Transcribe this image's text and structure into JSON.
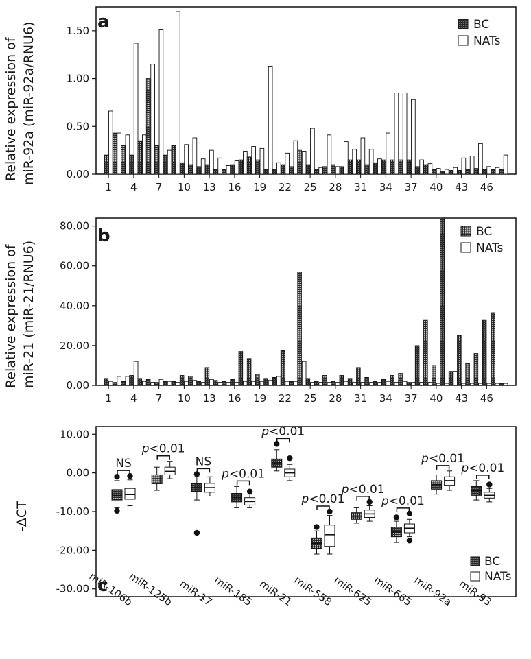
{
  "colors": {
    "bc_fill": "#3a3a3a",
    "nats_fill": "#ffffff",
    "stroke": "#111111",
    "hatch_light": "#bdbdbd"
  },
  "chart_data": [
    {
      "type": "bar",
      "panel_letter": "a",
      "ylabel_line1": "Relative expression of",
      "ylabel_line2": "miR-92a (miR-92a/RNU6)",
      "ylim": [
        0,
        1.75
      ],
      "yticks": [
        0,
        0.5,
        1.0,
        1.5
      ],
      "ytick_labels": [
        "0.00",
        "0.50",
        "1.00",
        "1.50"
      ],
      "categories": [
        "1",
        "2",
        "3",
        "4",
        "5",
        "6",
        "7",
        "8",
        "9",
        "10",
        "11",
        "12",
        "13",
        "14",
        "15",
        "16",
        "17",
        "18",
        "19",
        "20",
        "21",
        "22",
        "23",
        "24",
        "25",
        "26",
        "27",
        "28",
        "29",
        "30",
        "31",
        "32",
        "33",
        "34",
        "35",
        "36",
        "37",
        "38",
        "39",
        "40",
        "41",
        "42",
        "43",
        "44",
        "45",
        "46",
        "47",
        "48"
      ],
      "xtick_labels": [
        "1",
        "4",
        "7",
        "10",
        "13",
        "16",
        "19",
        "22",
        "25",
        "28",
        "31",
        "34",
        "37",
        "40",
        "43",
        "46"
      ],
      "legend": [
        "BC",
        "NATs"
      ],
      "series": [
        {
          "name": "BC",
          "values": [
            0.2,
            0.43,
            0.3,
            0.2,
            0.35,
            1.0,
            0.3,
            0.2,
            0.3,
            0.12,
            0.1,
            0.08,
            0.1,
            0.05,
            0.05,
            0.1,
            0.15,
            0.18,
            0.15,
            0.05,
            0.05,
            0.1,
            0.08,
            0.25,
            0.1,
            0.05,
            0.08,
            0.1,
            0.08,
            0.15,
            0.15,
            0.1,
            0.12,
            0.15,
            0.15,
            0.15,
            0.15,
            0.08,
            0.1,
            0.05,
            0.03,
            0.04,
            0.04,
            0.05,
            0.06,
            0.05,
            0.05,
            0.05
          ]
        },
        {
          "name": "NATs",
          "values": [
            0.66,
            0.43,
            0.41,
            1.37,
            0.41,
            1.15,
            1.51,
            0.25,
            1.7,
            0.31,
            0.38,
            0.16,
            0.25,
            0.17,
            0.09,
            0.14,
            0.24,
            0.29,
            0.27,
            1.13,
            0.12,
            0.22,
            0.35,
            0.24,
            0.48,
            0.07,
            0.41,
            0.08,
            0.34,
            0.26,
            0.38,
            0.26,
            0.16,
            0.43,
            0.85,
            0.85,
            0.78,
            0.15,
            0.11,
            0.06,
            0.05,
            0.07,
            0.17,
            0.19,
            0.32,
            0.08,
            0.07,
            0.2
          ]
        }
      ]
    },
    {
      "type": "bar",
      "panel_letter": "b",
      "ylabel_line1": "Relative expression of",
      "ylabel_line2": "miR-21 (miR-21/RNU6)",
      "ylim": [
        0,
        84
      ],
      "yticks": [
        0,
        20,
        40,
        60,
        80
      ],
      "ytick_labels": [
        "0.00",
        "20.00",
        "40.00",
        "60.00",
        "80.00"
      ],
      "categories": [
        "1",
        "2",
        "3",
        "4",
        "5",
        "6",
        "7",
        "8",
        "9",
        "10",
        "11",
        "12",
        "13",
        "14",
        "15",
        "16",
        "17",
        "18",
        "19",
        "20",
        "21",
        "22",
        "23",
        "24",
        "25",
        "26",
        "27",
        "28",
        "29",
        "30",
        "31",
        "32",
        "33",
        "34",
        "35",
        "36",
        "37",
        "38",
        "39",
        "40",
        "41",
        "42",
        "43",
        "44",
        "45",
        "46",
        "47",
        "48"
      ],
      "xtick_labels": [
        "1",
        "4",
        "7",
        "10",
        "13",
        "16",
        "19",
        "22",
        "25",
        "28",
        "31",
        "34",
        "37",
        "40",
        "43",
        "46"
      ],
      "legend": [
        "BC",
        "NATs"
      ],
      "series": [
        {
          "name": "BC",
          "values": [
            3.5,
            1.5,
            2.0,
            5.0,
            3.5,
            3.0,
            1.5,
            2.0,
            2.0,
            5.0,
            4.5,
            2.0,
            9.0,
            2.5,
            2.0,
            3.0,
            17.0,
            13.5,
            5.5,
            3.5,
            4.0,
            17.5,
            2.0,
            57.0,
            3.5,
            2.0,
            5.0,
            2.0,
            5.0,
            3.5,
            9.0,
            4.0,
            2.0,
            3.0,
            5.0,
            6.0,
            1.5,
            20.0,
            33.0,
            10.0,
            84.0,
            7.0,
            25.0,
            11.0,
            16.0,
            33.0,
            36.5,
            1.0
          ]
        },
        {
          "name": "NATs",
          "values": [
            2.0,
            4.5,
            4.5,
            12.0,
            2.0,
            1.5,
            3.0,
            2.0,
            1.5,
            2.0,
            2.5,
            1.5,
            3.0,
            1.5,
            1.5,
            1.5,
            2.0,
            2.0,
            2.0,
            2.5,
            4.5,
            2.0,
            2.0,
            12.0,
            1.5,
            1.5,
            1.5,
            1.5,
            2.0,
            1.5,
            1.5,
            1.5,
            1.5,
            2.0,
            1.5,
            2.0,
            1.5,
            1.5,
            1.5,
            1.0,
            1.0,
            7.0,
            1.0,
            1.0,
            1.0,
            1.0,
            1.0,
            1.0
          ]
        }
      ]
    },
    {
      "type": "box",
      "panel_letter": "c",
      "ylabel": "-ΔCT",
      "ylim": [
        -32,
        12
      ],
      "yticks": [
        10,
        0,
        -10,
        -20,
        -30
      ],
      "ytick_labels": [
        "10.00",
        "0.00",
        "-10.00",
        "-20.00",
        "-30.00"
      ],
      "categories": [
        "miR-106b",
        "miR-125b",
        "miR-17",
        "miR-185",
        "miR-21",
        "miR-558",
        "miR-625",
        "miR-665",
        "miR-92a",
        "miR-93"
      ],
      "legend": [
        "BC",
        "NATs"
      ],
      "annotations": [
        {
          "p_prefix": "",
          "p_text": "NS"
        },
        {
          "p_prefix": "p",
          "p_text": "<0.01"
        },
        {
          "p_prefix": "",
          "p_text": "NS"
        },
        {
          "p_prefix": "p",
          "p_text": "<0.01"
        },
        {
          "p_prefix": "p",
          "p_text": "<0.01"
        },
        {
          "p_prefix": "p",
          "p_text": "<0.01"
        },
        {
          "p_prefix": "p",
          "p_text": "<0.01"
        },
        {
          "p_prefix": "p",
          "p_text": "<0.01"
        },
        {
          "p_prefix": "p",
          "p_text": "<0.01"
        },
        {
          "p_prefix": "p",
          "p_text": "<0.01"
        }
      ],
      "series": [
        {
          "name": "BC",
          "boxes": [
            {
              "whislo": -9.0,
              "q1": -7.0,
              "med": -5.8,
              "q3": -4.3,
              "whishi": -2.0,
              "fliers": [
                -9.8,
                -1.0
              ]
            },
            {
              "whislo": -4.5,
              "q1": -2.8,
              "med": -1.5,
              "q3": -0.5,
              "whishi": 1.5,
              "fliers": []
            },
            {
              "whislo": -7.0,
              "q1": -4.8,
              "med": -3.8,
              "q3": -2.8,
              "whishi": -1.0,
              "fliers": [
                -0.3,
                -15.5
              ]
            },
            {
              "whislo": -9.0,
              "q1": -7.5,
              "med": -6.4,
              "q3": -5.3,
              "whishi": -3.5,
              "fliers": []
            },
            {
              "whislo": 0.5,
              "q1": 1.5,
              "med": 2.6,
              "q3": 3.6,
              "whishi": 6.0,
              "fliers": [
                7.5
              ]
            },
            {
              "whislo": -21.0,
              "q1": -19.5,
              "med": -18.2,
              "q3": -16.8,
              "whishi": -15.0,
              "fliers": [
                -14.0
              ]
            },
            {
              "whislo": -13.0,
              "q1": -12.0,
              "med": -11.2,
              "q3": -10.3,
              "whishi": -9.0,
              "fliers": []
            },
            {
              "whislo": -18.0,
              "q1": -16.5,
              "med": -15.3,
              "q3": -14.0,
              "whishi": -12.5,
              "fliers": [
                -11.5
              ]
            },
            {
              "whislo": -5.5,
              "q1": -4.2,
              "med": -3.0,
              "q3": -2.0,
              "whishi": -0.5,
              "fliers": []
            },
            {
              "whislo": -7.0,
              "q1": -5.8,
              "med": -4.6,
              "q3": -3.5,
              "whishi": -2.0,
              "fliers": []
            }
          ]
        },
        {
          "name": "NATs",
          "boxes": [
            {
              "whislo": -8.5,
              "q1": -6.8,
              "med": -5.6,
              "q3": -4.0,
              "whishi": -1.8,
              "fliers": [
                -0.8
              ]
            },
            {
              "whislo": -1.5,
              "q1": -0.5,
              "med": 0.4,
              "q3": 1.5,
              "whishi": 3.0,
              "fliers": []
            },
            {
              "whislo": -6.0,
              "q1": -5.0,
              "med": -3.8,
              "q3": -2.7,
              "whishi": -1.0,
              "fliers": []
            },
            {
              "whislo": -9.0,
              "q1": -8.3,
              "med": -7.4,
              "q3": -6.4,
              "whishi": -5.5,
              "fliers": [
                -4.8
              ]
            },
            {
              "whislo": -2.0,
              "q1": -1.0,
              "med": 0.0,
              "q3": 1.0,
              "whishi": 2.2,
              "fliers": [
                3.8
              ]
            },
            {
              "whislo": -21.0,
              "q1": -19.0,
              "med": -16.0,
              "q3": -13.5,
              "whishi": -11.0,
              "fliers": [
                -10.0
              ]
            },
            {
              "whislo": -12.5,
              "q1": -11.5,
              "med": -10.6,
              "q3": -9.6,
              "whishi": -8.5,
              "fliers": [
                -7.5
              ]
            },
            {
              "whislo": -16.5,
              "q1": -15.5,
              "med": -14.3,
              "q3": -13.2,
              "whishi": -12.0,
              "fliers": [
                -10.5,
                -17.5
              ]
            },
            {
              "whislo": -4.5,
              "q1": -3.2,
              "med": -2.0,
              "q3": -1.0,
              "whishi": 0.5,
              "fliers": []
            },
            {
              "whislo": -7.5,
              "q1": -6.5,
              "med": -5.8,
              "q3": -5.0,
              "whishi": -4.0,
              "fliers": [
                -3.0
              ]
            }
          ]
        }
      ]
    }
  ]
}
